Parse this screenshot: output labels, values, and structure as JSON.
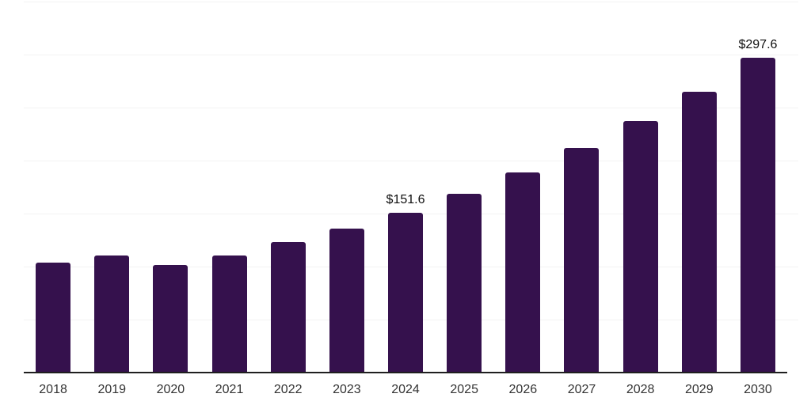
{
  "chart_data": {
    "type": "bar",
    "title": "",
    "xlabel": "",
    "ylabel": "",
    "categories": [
      "2018",
      "2019",
      "2020",
      "2021",
      "2022",
      "2023",
      "2024",
      "2025",
      "2026",
      "2027",
      "2028",
      "2029",
      "2030"
    ],
    "values": [
      104.4,
      110.9,
      102.0,
      111.5,
      124.0,
      136.8,
      151.6,
      169.6,
      189.8,
      212.4,
      237.7,
      265.9,
      297.6
    ],
    "data_labels": {
      "2024": "$151.6",
      "2030": "$297.6"
    },
    "ylim": [
      0,
      350
    ],
    "gridline_step": 50,
    "grid": true,
    "legend": "none",
    "colors": {
      "bar": "#35114d",
      "gridline": "#f2f2f2",
      "axis_line": "#1f1f1f",
      "x_label_text": "#333333",
      "value_label_text": "#0d0d0d",
      "background": "#ffffff"
    }
  }
}
